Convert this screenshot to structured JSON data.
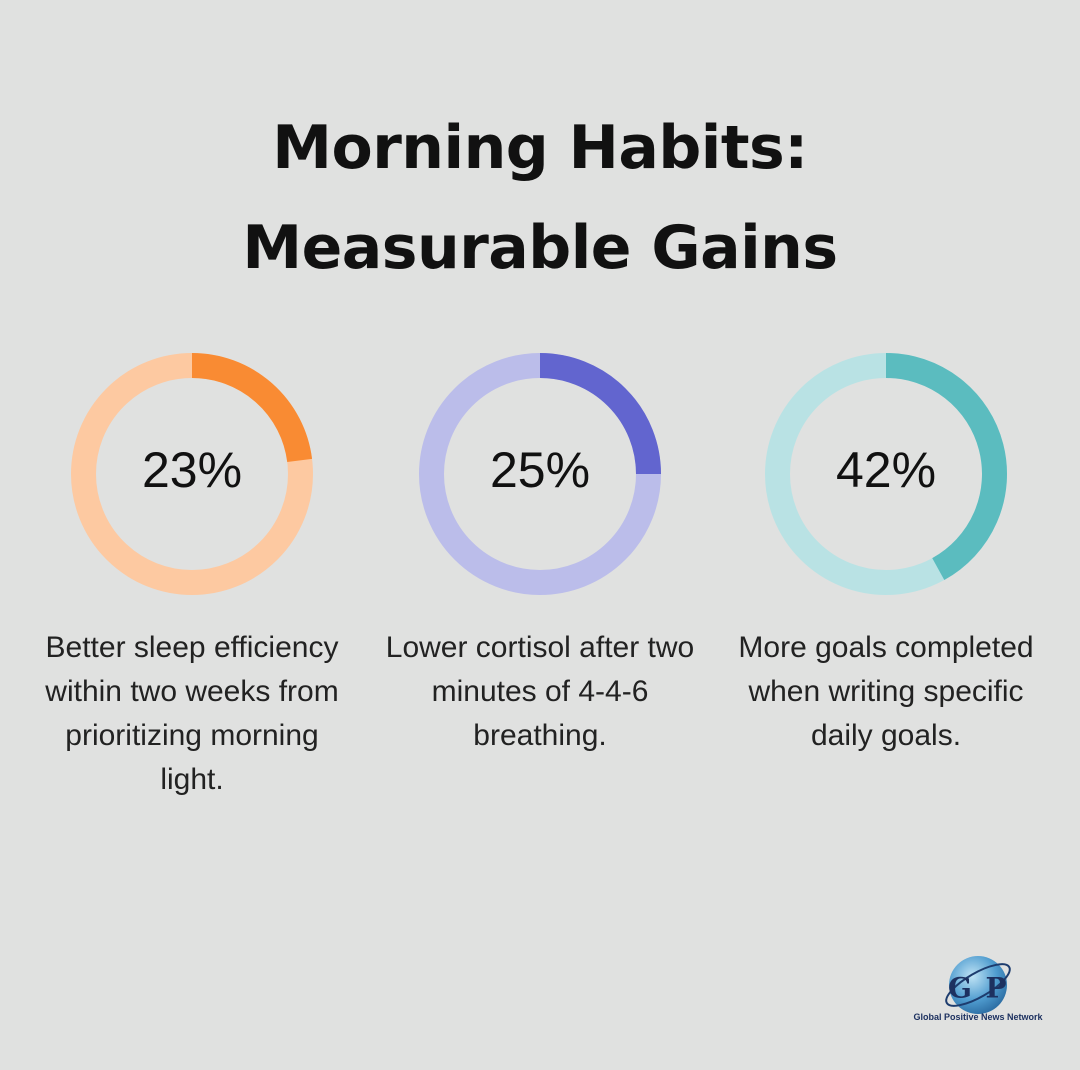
{
  "header": {
    "title": "Morning Habits: Measurable Gains"
  },
  "chart_data": [
    {
      "type": "donut",
      "values": [
        23
      ],
      "value_labels": [
        "23%"
      ],
      "ylim": [
        0,
        100
      ],
      "color": "#f98b33",
      "track_color": "#fdc9a1",
      "caption": "Better sleep efficiency within two weeks from prioritizing morning light."
    },
    {
      "type": "donut",
      "values": [
        25
      ],
      "value_labels": [
        "25%"
      ],
      "ylim": [
        0,
        100
      ],
      "color": "#6265cf",
      "track_color": "#bbbdea",
      "caption": "Lower cortisol after two minutes of 4-4-6 breathing."
    },
    {
      "type": "donut",
      "values": [
        42
      ],
      "value_labels": [
        "42%"
      ],
      "ylim": [
        0,
        100
      ],
      "color": "#5bbcbf",
      "track_color": "#b9e2e4",
      "caption": "More goals completed when writing specific daily goals."
    }
  ],
  "logo": {
    "letters": [
      "G",
      "P"
    ],
    "text": "Global Positive News Network"
  }
}
